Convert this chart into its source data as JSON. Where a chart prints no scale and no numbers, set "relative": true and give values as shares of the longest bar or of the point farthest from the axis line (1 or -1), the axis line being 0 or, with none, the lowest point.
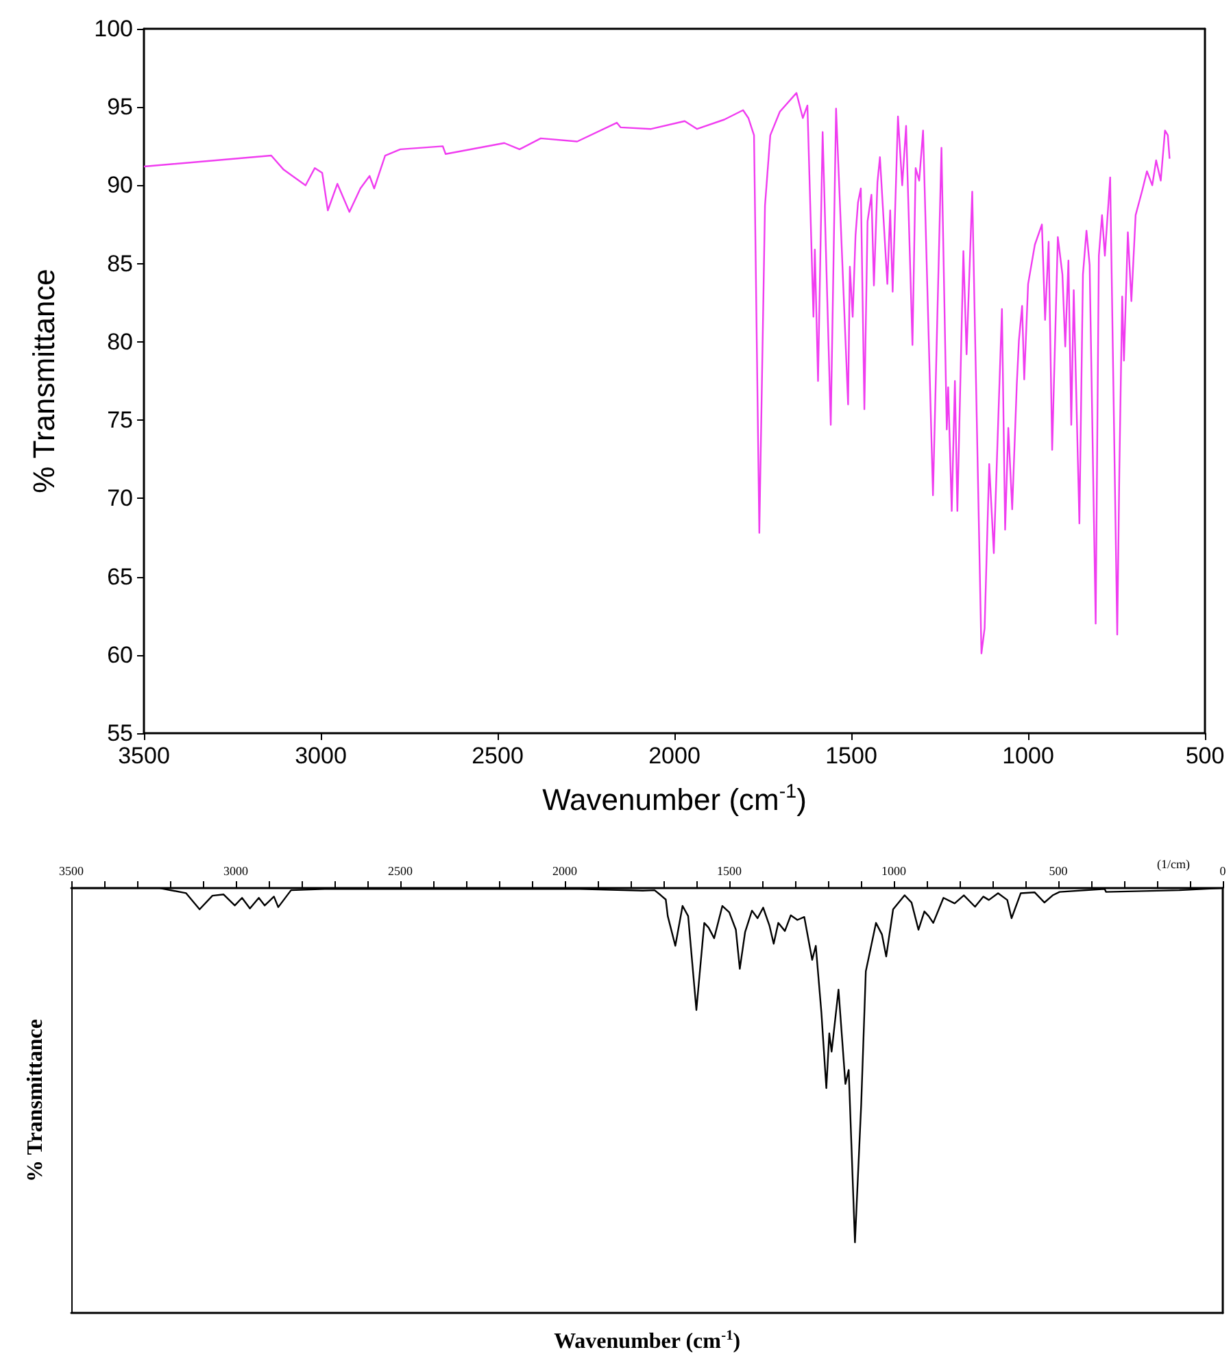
{
  "chart_data": [
    {
      "type": "line",
      "xlabel": "Wavenumber (cm$^{-1}$)",
      "ylabel": "% Transmittance",
      "xlim": [
        3500,
        500
      ],
      "xticks": [
        3500,
        3000,
        2500,
        2000,
        1500,
        1000,
        500
      ],
      "ylim": [
        55,
        100
      ],
      "yticks": [
        55,
        60,
        65,
        70,
        75,
        80,
        85,
        90,
        95,
        100
      ],
      "grid": false,
      "x": [
        3500,
        3140,
        3105,
        3043,
        3017,
        2996,
        2980,
        2953,
        2919,
        2888,
        2862,
        2849,
        2818,
        2775,
        2655,
        2647,
        2481,
        2438,
        2378,
        2275,
        2163,
        2152,
        2066,
        1971,
        1936,
        1859,
        1806,
        1791,
        1775,
        1760,
        1744,
        1729,
        1702,
        1655,
        1637,
        1624,
        1607,
        1603,
        1594,
        1581,
        1558,
        1543,
        1509,
        1504,
        1496,
        1488,
        1481,
        1473,
        1463,
        1454,
        1443,
        1436,
        1426,
        1419,
        1398,
        1390,
        1383,
        1368,
        1356,
        1345,
        1327,
        1318,
        1308,
        1297,
        1269,
        1245,
        1230,
        1226,
        1216,
        1207,
        1200,
        1183,
        1174,
        1158,
        1132,
        1123,
        1110,
        1097,
        1074,
        1065,
        1056,
        1045,
        1032,
        1026,
        1017,
        1011,
        1000,
        981,
        961,
        952,
        942,
        932,
        916,
        903,
        895,
        886,
        878,
        871,
        855,
        845,
        835,
        826,
        809,
        800,
        791,
        783,
        768,
        748,
        742,
        734,
        729,
        718,
        708,
        696,
        677,
        664,
        649,
        638,
        625,
        613,
        605,
        600
      ],
      "series": [
        {
          "color": "#f03cf0",
          "values": [
            91.2,
            91.9,
            91.0,
            90.0,
            91.1,
            90.8,
            88.4,
            90.1,
            88.3,
            89.8,
            90.6,
            89.8,
            91.9,
            92.3,
            92.5,
            92.0,
            92.7,
            92.3,
            93.0,
            92.8,
            94.0,
            93.7,
            93.6,
            94.1,
            93.6,
            94.2,
            94.8,
            94.3,
            93.2,
            67.8,
            88.7,
            93.2,
            94.7,
            95.9,
            94.3,
            95.1,
            81.6,
            85.9,
            77.5,
            93.4,
            74.7,
            94.9,
            76.0,
            84.8,
            81.6,
            86.8,
            88.9,
            89.8,
            75.7,
            87.7,
            89.4,
            83.6,
            90.2,
            91.8,
            83.7,
            88.4,
            83.2,
            94.4,
            90.0,
            93.8,
            79.8,
            91.1,
            90.3,
            93.5,
            70.2,
            92.4,
            74.4,
            77.1,
            69.2,
            77.5,
            69.2,
            85.8,
            79.2,
            89.6,
            60.1,
            61.7,
            72.2,
            66.5,
            82.1,
            68.0,
            74.5,
            69.3,
            77.3,
            80.1,
            82.3,
            77.6,
            83.7,
            86.2,
            87.5,
            81.4,
            86.4,
            73.1,
            86.7,
            84.3,
            79.7,
            85.2,
            74.7,
            83.3,
            68.4,
            84.3,
            87.1,
            84.9,
            62.0,
            85.5,
            88.1,
            85.5,
            90.5,
            61.3,
            71.8,
            82.9,
            78.8,
            87.0,
            82.6,
            88.1,
            89.7,
            90.9,
            90.0,
            91.6,
            90.3,
            93.5,
            93.2,
            91.7
          ]
        }
      ]
    },
    {
      "type": "line",
      "relative": true,
      "tick_labels": "x",
      "xlabel": "Wavenumber (cm$^{-1}$)",
      "ylabel": "% Transmittance",
      "grid": false,
      "annotations": [
        "(1/cm)"
      ],
      "xlim": [
        3500,
        0
      ],
      "xticks": [
        3500,
        {
          "value": 3400,
          "label": null
        },
        {
          "value": 3300,
          "label": null
        },
        {
          "value": 3200,
          "label": null
        },
        {
          "value": 3100,
          "label": null
        },
        3000,
        {
          "value": 2900,
          "label": null
        },
        {
          "value": 2800,
          "label": null
        },
        {
          "value": 2700,
          "label": null
        },
        {
          "value": 2600,
          "label": null
        },
        2500,
        {
          "value": 2400,
          "label": null
        },
        {
          "value": 2300,
          "label": null
        },
        {
          "value": 2200,
          "label": null
        },
        {
          "value": 2100,
          "label": null
        },
        2000,
        {
          "value": 1900,
          "label": null
        },
        {
          "value": 1800,
          "label": null
        },
        {
          "value": 1700,
          "label": null
        },
        {
          "value": 1600,
          "label": null
        },
        1500,
        {
          "value": 1400,
          "label": null
        },
        {
          "value": 1300,
          "label": null
        },
        {
          "value": 1200,
          "label": null
        },
        {
          "value": 1100,
          "label": null
        },
        1000,
        {
          "value": 900,
          "label": null
        },
        {
          "value": 800,
          "label": null
        },
        {
          "value": 700,
          "label": null
        },
        {
          "value": 600,
          "label": null
        },
        500,
        {
          "value": 400,
          "label": null
        },
        {
          "value": 300,
          "label": null
        },
        {
          "value": 200,
          "label": null
        },
        {
          "value": 100,
          "label": null
        },
        0
      ],
      "x": [
        3500,
        3231,
        3151,
        3110,
        3071,
        3037,
        3003,
        2981,
        2957,
        2930,
        2912,
        2884,
        2871,
        2832,
        2730,
        1955,
        1763,
        1727,
        1708,
        1693,
        1687,
        1664,
        1642,
        1625,
        1600,
        1576,
        1563,
        1546,
        1521,
        1500,
        1480,
        1468,
        1452,
        1431,
        1414,
        1397,
        1378,
        1365,
        1351,
        1331,
        1313,
        1293,
        1272,
        1248,
        1237,
        1220,
        1205,
        1196,
        1189,
        1185,
        1168,
        1147,
        1137,
        1118,
        1099,
        1085,
        1054,
        1036,
        1023,
        1002,
        967,
        946,
        925,
        907,
        894,
        880,
        849,
        815,
        787,
        753,
        728,
        711,
        683,
        655,
        642,
        614,
        572,
        542,
        517,
        496,
        359,
        355,
        132,
        6
      ],
      "series": [
        {
          "color": "#000000",
          "values": [
            1.0,
            1.0,
            0.988,
            0.95,
            0.982,
            0.985,
            0.959,
            0.977,
            0.952,
            0.977,
            0.959,
            0.98,
            0.955,
            0.995,
            0.998,
            0.998,
            0.994,
            0.995,
            0.983,
            0.973,
            0.934,
            0.864,
            0.958,
            0.934,
            0.713,
            0.918,
            0.907,
            0.882,
            0.958,
            0.943,
            0.902,
            0.81,
            0.896,
            0.947,
            0.929,
            0.954,
            0.912,
            0.869,
            0.918,
            0.899,
            0.936,
            0.925,
            0.932,
            0.831,
            0.864,
            0.707,
            0.529,
            0.658,
            0.615,
            0.642,
            0.761,
            0.539,
            0.572,
            0.166,
            0.491,
            0.804,
            0.918,
            0.891,
            0.839,
            0.95,
            0.983,
            0.966,
            0.902,
            0.945,
            0.934,
            0.918,
            0.977,
            0.964,
            0.983,
            0.956,
            0.98,
            0.972,
            0.988,
            0.972,
            0.929,
            0.988,
            0.99,
            0.966,
            0.983,
            0.991,
            0.998,
            0.991,
            0.995,
            1.0
          ]
        }
      ]
    }
  ]
}
